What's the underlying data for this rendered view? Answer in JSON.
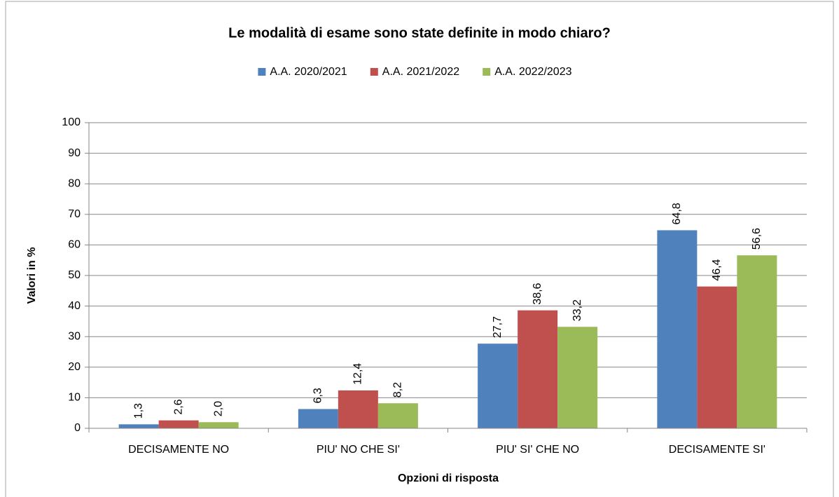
{
  "chart_data": {
    "type": "bar",
    "title": "Le modalità di esame sono state definite in modo chiaro?",
    "x_label": "Opzioni di risposta",
    "y_label": "Valori in %",
    "categories": [
      "DECISAMENTE NO",
      "PIU' NO CHE SI'",
      "PIU' SI' CHE NO",
      "DECISAMENTE SI'"
    ],
    "series": [
      {
        "name": "A.A. 2020/2021",
        "color": "#4f81bd",
        "values": [
          1.3,
          6.3,
          27.7,
          64.8
        ],
        "value_labels": [
          "1,3",
          "6,3",
          "27,7",
          "64,8"
        ]
      },
      {
        "name": "A.A. 2021/2022",
        "color": "#c0504d",
        "values": [
          2.6,
          12.4,
          38.6,
          46.4
        ],
        "value_labels": [
          "2,6",
          "12,4",
          "38,6",
          "46,4"
        ]
      },
      {
        "name": "A.A. 2022/2023",
        "color": "#9bbb59",
        "values": [
          2.0,
          8.2,
          33.2,
          56.6
        ],
        "value_labels": [
          "2,0",
          "8,2",
          "33,2",
          "56,6"
        ]
      }
    ],
    "ylim": [
      0,
      100
    ],
    "yticks": [
      0,
      10,
      20,
      30,
      40,
      50,
      60,
      70,
      80,
      90,
      100
    ],
    "grid": true,
    "legend": "top"
  }
}
